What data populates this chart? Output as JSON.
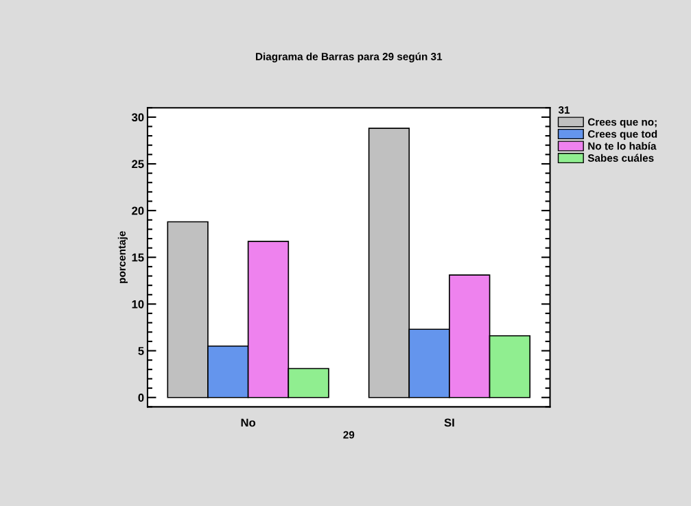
{
  "chart_data": {
    "type": "bar",
    "title": "Diagrama de Barras para 29 según 31",
    "xlabel": "29",
    "ylabel": "porcentaje",
    "legend_title": "31",
    "categories": [
      "No",
      "SI"
    ],
    "series": [
      {
        "name": "Crees que no;",
        "color": "#c0c0c0",
        "values": [
          18.8,
          28.8
        ]
      },
      {
        "name": "Crees que tod",
        "color": "#6495ed",
        "values": [
          5.5,
          7.3
        ]
      },
      {
        "name": "No te lo había",
        "color": "#ee82ee",
        "values": [
          16.7,
          13.1
        ]
      },
      {
        "name": "Sabes cuáles",
        "color": "#90ee90",
        "values": [
          3.1,
          6.6
        ]
      }
    ],
    "ylim": [
      -1,
      31
    ],
    "yticks": [
      0,
      5,
      10,
      15,
      20,
      25,
      30
    ],
    "grid": false,
    "legend": "top right"
  }
}
